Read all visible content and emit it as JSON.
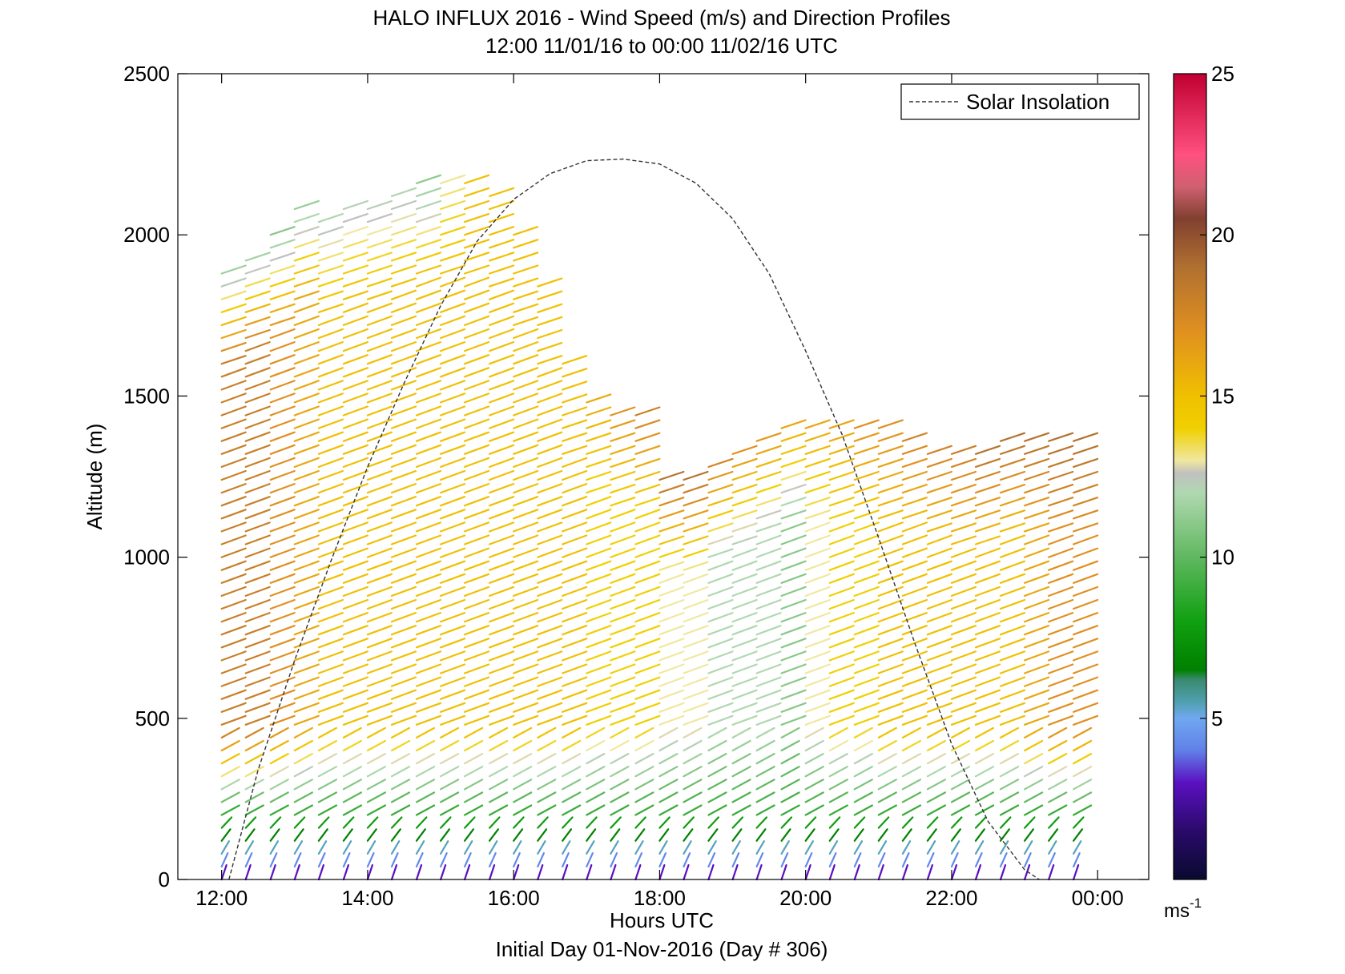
{
  "chart_data": {
    "type": "scatter",
    "subtype": "wind-barb-profile",
    "title": "HALO INFLUX 2016 - Wind Speed (m/s) and Direction Profiles",
    "subtitle": "12:00 11/01/16 to 00:00 11/02/16  UTC",
    "xlabel": "Hours UTC",
    "footer": "Initial Day 01-Nov-2016 (Day # 306)",
    "ylabel": "Altitude (m)",
    "xlim": [
      11.4,
      24.7
    ],
    "ylim": [
      0,
      2500
    ],
    "x_ticks": [
      12,
      14,
      16,
      18,
      20,
      22,
      24
    ],
    "x_tick_labels": [
      "12:00",
      "14:00",
      "16:00",
      "18:00",
      "20:00",
      "22:00",
      "00:00"
    ],
    "y_ticks": [
      0,
      500,
      1000,
      1500,
      2000,
      2500
    ],
    "y_tick_labels": [
      "0",
      "500",
      "1000",
      "1500",
      "2000",
      "2500"
    ],
    "legend": {
      "entries": [
        "Solar Insolation"
      ],
      "placement": "top-right",
      "style": "dashed",
      "color": "#000000"
    },
    "colorbar": {
      "label": "ms",
      "label_exponent": "-1",
      "range": [
        0,
        25
      ],
      "ticks": [
        5,
        10,
        15,
        20,
        25
      ],
      "tick_labels": [
        "5",
        "10",
        "15",
        "20",
        "25"
      ],
      "stops": [
        {
          "v": 0.0,
          "c": "#0a0a30"
        },
        {
          "v": 1.5,
          "c": "#2a0a6a"
        },
        {
          "v": 3.0,
          "c": "#5a10c0"
        },
        {
          "v": 4.0,
          "c": "#6080e8"
        },
        {
          "v": 5.0,
          "c": "#70a8f0"
        },
        {
          "v": 5.5,
          "c": "#50a0b0"
        },
        {
          "v": 6.2,
          "c": "#3a8a70"
        },
        {
          "v": 6.5,
          "c": "#008000"
        },
        {
          "v": 8.0,
          "c": "#10a010"
        },
        {
          "v": 10.0,
          "c": "#60b860"
        },
        {
          "v": 12.0,
          "c": "#b0d8b0"
        },
        {
          "v": 12.6,
          "c": "#c0c0c0"
        },
        {
          "v": 13.0,
          "c": "#f0e8a0"
        },
        {
          "v": 14.0,
          "c": "#f0d000"
        },
        {
          "v": 15.0,
          "c": "#f0c000"
        },
        {
          "v": 17.0,
          "c": "#e09020"
        },
        {
          "v": 19.0,
          "c": "#b07030"
        },
        {
          "v": 20.5,
          "c": "#804030"
        },
        {
          "v": 21.5,
          "c": "#d06070"
        },
        {
          "v": 22.5,
          "c": "#ff5080"
        },
        {
          "v": 25.0,
          "c": "#c00030"
        }
      ]
    },
    "series": [
      {
        "name": "Solar Insolation",
        "kind": "line",
        "x": [
          12.1,
          12.5,
          13.0,
          13.5,
          14.0,
          14.5,
          15.0,
          15.5,
          16.0,
          16.5,
          17.0,
          17.5,
          18.0,
          18.5,
          19.0,
          19.5,
          20.0,
          20.5,
          21.0,
          21.5,
          22.0,
          22.5,
          23.0,
          23.2
        ],
        "y": [
          0,
          340,
          680,
          990,
          1280,
          1540,
          1780,
          1980,
          2110,
          2190,
          2230,
          2235,
          2220,
          2160,
          2050,
          1880,
          1640,
          1380,
          1060,
          730,
          420,
          180,
          30,
          0
        ]
      }
    ],
    "wind_profiles": [
      {
        "t": 12.0,
        "top": 1900,
        "low": 9,
        "mid": 18,
        "high": 11,
        "v": 40
      },
      {
        "t": 12.33,
        "top": 1950,
        "low": 9,
        "mid": 18,
        "high": 11,
        "v": 40
      },
      {
        "t": 12.67,
        "top": 2000,
        "low": 9,
        "mid": 17,
        "high": 11,
        "v": 40
      },
      {
        "t": 13.0,
        "top": 2100,
        "low": 9,
        "mid": 16,
        "high": 11,
        "v": 40
      },
      {
        "t": 13.33,
        "top": 2050,
        "low": 9,
        "mid": 15,
        "high": 12,
        "v": 40
      },
      {
        "t": 13.67,
        "top": 2100,
        "low": 9,
        "mid": 15,
        "high": 12,
        "v": 40
      },
      {
        "t": 14.0,
        "top": 2100,
        "low": 9,
        "mid": 15,
        "high": 12,
        "v": 40
      },
      {
        "t": 14.33,
        "top": 2130,
        "low": 9,
        "mid": 15,
        "high": 12,
        "v": 40
      },
      {
        "t": 14.67,
        "top": 2170,
        "low": 9,
        "mid": 15,
        "high": 11,
        "v": 40
      },
      {
        "t": 15.0,
        "top": 2170,
        "low": 9,
        "mid": 15,
        "high": 13,
        "v": 40
      },
      {
        "t": 15.33,
        "top": 2160,
        "low": 9,
        "mid": 15,
        "high": 15,
        "v": 40
      },
      {
        "t": 15.67,
        "top": 2130,
        "low": 9,
        "mid": 15,
        "high": 15,
        "v": 40
      },
      {
        "t": 16.0,
        "top": 2000,
        "low": 9,
        "mid": 15,
        "high": 15,
        "v": 40
      },
      {
        "t": 16.33,
        "top": 1870,
        "low": 9,
        "mid": 15,
        "high": 15,
        "v": 40
      },
      {
        "t": 16.67,
        "top": 1620,
        "low": 9,
        "mid": 15,
        "high": 15,
        "v": 40
      },
      {
        "t": 17.0,
        "top": 1500,
        "low": 9,
        "mid": 14,
        "high": 16,
        "v": 40
      },
      {
        "t": 17.33,
        "top": 1450,
        "low": 9,
        "mid": 14,
        "high": 17,
        "v": 40
      },
      {
        "t": 17.67,
        "top": 1450,
        "low": 9,
        "mid": 14,
        "high": 18,
        "v": 40
      },
      {
        "t": 18.0,
        "top": 1250,
        "low": 9,
        "mid": 13,
        "high": 19,
        "v": 40
      },
      {
        "t": 18.33,
        "top": 1250,
        "low": 9,
        "mid": 13,
        "high": 19,
        "v": 40
      },
      {
        "t": 18.67,
        "top": 1300,
        "low": 9,
        "mid": 12,
        "high": 18,
        "v": 40
      },
      {
        "t": 19.0,
        "top": 1330,
        "low": 9,
        "mid": 12,
        "high": 17,
        "v": 40
      },
      {
        "t": 19.33,
        "top": 1380,
        "low": 9,
        "mid": 12,
        "high": 17,
        "v": 40
      },
      {
        "t": 19.67,
        "top": 1400,
        "low": 9,
        "mid": 11,
        "high": 16,
        "v": 40
      },
      {
        "t": 20.0,
        "top": 1400,
        "low": 9,
        "mid": 13,
        "high": 16,
        "v": 40
      },
      {
        "t": 20.33,
        "top": 1400,
        "low": 9,
        "mid": 14,
        "high": 16,
        "v": 40
      },
      {
        "t": 20.67,
        "top": 1400,
        "low": 9,
        "mid": 14,
        "high": 17,
        "v": 40
      },
      {
        "t": 21.0,
        "top": 1400,
        "low": 9,
        "mid": 15,
        "high": 17,
        "v": 40
      },
      {
        "t": 21.33,
        "top": 1390,
        "low": 9,
        "mid": 15,
        "high": 18,
        "v": 40
      },
      {
        "t": 21.67,
        "top": 1350,
        "low": 9,
        "mid": 15,
        "high": 18,
        "v": 40
      },
      {
        "t": 22.0,
        "top": 1320,
        "low": 9,
        "mid": 15,
        "high": 18,
        "v": 40
      },
      {
        "t": 22.33,
        "top": 1340,
        "low": 9,
        "mid": 15,
        "high": 19,
        "v": 40
      },
      {
        "t": 22.67,
        "top": 1370,
        "low": 9,
        "mid": 15,
        "high": 19,
        "v": 40
      },
      {
        "t": 23.0,
        "top": 1380,
        "low": 9,
        "mid": 16,
        "high": 19,
        "v": 40
      },
      {
        "t": 23.33,
        "top": 1380,
        "low": 9,
        "mid": 17,
        "high": 19,
        "v": 40
      },
      {
        "t": 23.67,
        "top": 1370,
        "low": 9,
        "mid": 17,
        "high": 19,
        "v": 40
      }
    ]
  }
}
